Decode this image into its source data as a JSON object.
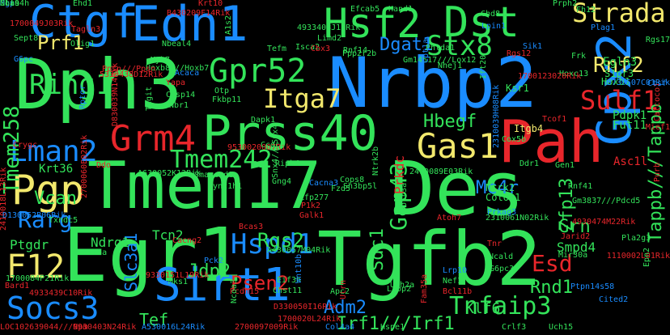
{
  "colors": {
    "background": "#000000",
    "green": "#33e35a",
    "blue": "#1a8cff",
    "red": "#e8262b",
    "yellow": "#f2e86d"
  },
  "words": [
    {
      "text": "Dph3",
      "color": "#33e35a"
    },
    {
      "text": "Nrbp2",
      "color": "#1a8cff"
    },
    {
      "text": "Tmem17",
      "color": "#33e35a"
    },
    {
      "text": "Des",
      "color": "#33e35a"
    },
    {
      "text": "Egr1",
      "color": "#33e35a"
    },
    {
      "text": "Tgfb2",
      "color": "#33e35a"
    },
    {
      "text": "Pah",
      "color": "#e8262b"
    },
    {
      "text": "Edn1",
      "color": "#1a8cff"
    },
    {
      "text": "Ctgf",
      "color": "#1a8cff"
    },
    {
      "text": "Prss40",
      "color": "#33e35a"
    },
    {
      "text": "Gpx2",
      "color": "#1a8cff"
    },
    {
      "text": "Hsf2",
      "color": "#33e35a"
    },
    {
      "text": "Dst",
      "color": "#33e35a"
    },
    {
      "text": "Gpr52",
      "color": "#33e35a"
    },
    {
      "text": "Sirt1",
      "color": "#1a8cff"
    },
    {
      "text": "Socs3",
      "color": "#1a8cff"
    },
    {
      "text": "Grm4",
      "color": "#e8262b"
    },
    {
      "text": "Pgp",
      "color": "#f2e86d"
    },
    {
      "text": "Gas1",
      "color": "#f2e86d"
    },
    {
      "text": "Strada",
      "color": "#f2e86d"
    },
    {
      "text": "Tmem242",
      "color": "#33e35a"
    },
    {
      "text": "Lman2",
      "color": "#1a8cff"
    },
    {
      "text": "Itga7",
      "color": "#f2e86d"
    },
    {
      "text": "Sulf1",
      "color": "#e8262b"
    },
    {
      "text": "Hspd1",
      "color": "#1a8cff"
    },
    {
      "text": "Tnfaip3",
      "color": "#33e35a"
    },
    {
      "text": "F12",
      "color": "#f2e86d"
    },
    {
      "text": "Ring1",
      "color": "#33e35a"
    },
    {
      "text": "Tmem258",
      "color": "#33e35a"
    },
    {
      "text": "Gap43",
      "color": "#33e35a"
    },
    {
      "text": "Stx8",
      "color": "#33e35a"
    },
    {
      "text": "Rnf2",
      "color": "#f2e86d"
    },
    {
      "text": "Esd",
      "color": "#e8262b"
    },
    {
      "text": "Rarg",
      "color": "#1a8cff"
    },
    {
      "text": "Irf1///Irf1",
      "color": "#33e35a"
    },
    {
      "text": "Slc3a1",
      "color": "#1a8cff"
    },
    {
      "text": "Tef",
      "color": "#33e35a"
    },
    {
      "text": "Rgs2",
      "color": "#33e35a"
    },
    {
      "text": "Psen2",
      "color": "#e8262b"
    },
    {
      "text": "Jdp2",
      "color": "#33e35a"
    },
    {
      "text": "Adm2",
      "color": "#1a8cff"
    },
    {
      "text": "Hbegf",
      "color": "#33e35a"
    },
    {
      "text": "Mc4r",
      "color": "#1a8cff"
    },
    {
      "text": "Prf1",
      "color": "#f2e86d"
    },
    {
      "text": "Vcan",
      "color": "#33e35a"
    },
    {
      "text": "Dgat1",
      "color": "#1a8cff"
    },
    {
      "text": "Rnd1",
      "color": "#33e35a"
    },
    {
      "text": "Grn",
      "color": "#33e35a"
    },
    {
      "text": "Zfp13",
      "color": "#33e35a"
    },
    {
      "text": "Sdc1",
      "color": "#33e35a"
    },
    {
      "text": "Tappb///Tappb",
      "color": "#33e35a"
    },
    {
      "text": "Klf6",
      "color": "#33e35a"
    },
    {
      "text": "Ptgdr",
      "color": "#33e35a"
    },
    {
      "text": "Tcn2",
      "color": "#33e35a"
    },
    {
      "text": "Ndrg1",
      "color": "#33e35a"
    },
    {
      "text": "Smpd4",
      "color": "#33e35a"
    },
    {
      "text": "Prkdc",
      "color": "#e8262b"
    },
    {
      "text": "Krt36",
      "color": "#33e35a"
    },
    {
      "text": "Asc1l",
      "color": "#e8262b"
    },
    {
      "text": "Itgb4",
      "color": "#f2e86d"
    },
    {
      "text": "Egln3",
      "color": "#33e35a"
    },
    {
      "text": "Pdpk1",
      "color": "#33e35a"
    },
    {
      "text": "Fut11",
      "color": "#33e35a"
    },
    {
      "text": "S1pr3",
      "color": "#33e35a"
    },
    {
      "text": "Hoxb1",
      "color": "#33e35a"
    },
    {
      "text": "Col6a1",
      "color": "#33e35a"
    },
    {
      "text": "Ntrk2",
      "color": "#33e35a"
    },
    {
      "text": "Ksr1",
      "color": "#33e35a"
    },
    {
      "text": "Nhej1",
      "color": "#33e35a"
    },
    {
      "text": "Gm14517///Lox12",
      "color": "#33e35a"
    },
    {
      "text": "Ppp2r2b",
      "color": "#33e35a"
    },
    {
      "text": "Isca2",
      "color": "#33e35a"
    },
    {
      "text": "4933408J17Rik",
      "color": "#33e35a"
    },
    {
      "text": "Efcab5",
      "color": "#33e35a"
    },
    {
      "text": "Hand1",
      "color": "#33e35a"
    },
    {
      "text": "Lta4h",
      "color": "#33e35a"
    },
    {
      "text": "Ehd1",
      "color": "#33e35a"
    },
    {
      "text": "B430209F14Rik",
      "color": "#e8262b"
    },
    {
      "text": "Krt10",
      "color": "#e8262b"
    },
    {
      "text": "1700049J03Rik",
      "color": "#e8262b"
    },
    {
      "text": "Tagln3",
      "color": "#e8262b"
    },
    {
      "text": "Sept8",
      "color": "#33e35a"
    },
    {
      "text": "Olig1",
      "color": "#33e35a"
    },
    {
      "text": "Nbeal4",
      "color": "#33e35a"
    },
    {
      "text": "Prph2",
      "color": "#33e35a"
    },
    {
      "text": "Fh12",
      "color": "#33e35a"
    },
    {
      "text": "Chd8",
      "color": "#33e35a"
    },
    {
      "text": "Lpin1",
      "color": "#1a8cff"
    },
    {
      "text": "Rgs12",
      "color": "#e8262b"
    },
    {
      "text": "Frk",
      "color": "#33e35a"
    },
    {
      "text": "Rgs17",
      "color": "#33e35a"
    },
    {
      "text": "G6pc",
      "color": "#1a8cff"
    },
    {
      "text": "5330438D12Rik",
      "color": "#e8262b"
    },
    {
      "text": "Myh7",
      "color": "#33e35a"
    },
    {
      "text": "Hoxb8///Hoxb7",
      "color": "#33e35a"
    },
    {
      "text": "Acaca",
      "color": "#1a8cff"
    },
    {
      "text": "Yapa",
      "color": "#e8262b"
    },
    {
      "text": "Nbr1",
      "color": "#33e35a"
    },
    {
      "text": "Casp14",
      "color": "#33e35a"
    },
    {
      "text": "Fkbp11",
      "color": "#33e35a"
    },
    {
      "text": "Tigit",
      "color": "#33e35a"
    },
    {
      "text": "Dapk1",
      "color": "#33e35a"
    },
    {
      "text": "D830039N14Rik",
      "color": "#e8262b"
    },
    {
      "text": "Crygc",
      "color": "#e8262b"
    },
    {
      "text": "9530020007Rik",
      "color": "#e8262b"
    },
    {
      "text": "Ccdc6",
      "color": "#33e35a"
    },
    {
      "text": "Ddo",
      "color": "#e8262b"
    },
    {
      "text": "A630052K13Rik",
      "color": "#33e35a"
    },
    {
      "text": "Ripk4",
      "color": "#33e35a"
    },
    {
      "text": "2410089E03Rik",
      "color": "#33e35a"
    },
    {
      "text": "2410018L13Rik",
      "color": "#e8262b"
    },
    {
      "text": "D130052B06Rik",
      "color": "#1a8cff"
    },
    {
      "text": "Txndc5",
      "color": "#33e35a"
    },
    {
      "text": "2700060E02Rik",
      "color": "#e8262b"
    },
    {
      "text": "Zfp277",
      "color": "#33e35a"
    },
    {
      "text": "P1k2",
      "color": "#e8262b"
    },
    {
      "text": "Galk1",
      "color": "#e8262b"
    },
    {
      "text": "Prkag3",
      "color": "#1a8cff"
    },
    {
      "text": "2310061N02Rik",
      "color": "#33e35a"
    },
    {
      "text": "4930474M22Rik",
      "color": "#e8262b"
    },
    {
      "text": "Gm3837///Pdcd5",
      "color": "#33e35a"
    },
    {
      "text": "Rnf41",
      "color": "#33e35a"
    },
    {
      "text": "Ddr1",
      "color": "#33e35a"
    },
    {
      "text": "Cacng2",
      "color": "#e8262b"
    },
    {
      "text": "Bcas3",
      "color": "#e8262b"
    },
    {
      "text": "A430057M04Rik",
      "color": "#33e35a"
    },
    {
      "text": "Pck2",
      "color": "#1a8cff"
    },
    {
      "text": "Eif5a",
      "color": "#33e35a"
    },
    {
      "text": "Bard1",
      "color": "#e8262b"
    },
    {
      "text": "4933439C10Rik",
      "color": "#e8262b"
    },
    {
      "text": "1700084P21Rik",
      "color": "#33e35a"
    },
    {
      "text": "Mks1",
      "color": "#33e35a"
    },
    {
      "text": "Pcdh15",
      "color": "#e8262b"
    },
    {
      "text": "Chst11",
      "color": "#33e35a"
    },
    {
      "text": "Eif3h",
      "color": "#33e35a"
    },
    {
      "text": "Wnt10b",
      "color": "#1a8cff"
    },
    {
      "text": "Lrp10",
      "color": "#1a8cff"
    },
    {
      "text": "Nef1",
      "color": "#33e35a"
    },
    {
      "text": "Bcl11b",
      "color": "#e8262b"
    },
    {
      "text": "G6pc3",
      "color": "#33e35a"
    },
    {
      "text": "Ncald",
      "color": "#33e35a"
    },
    {
      "text": "Tnr",
      "color": "#e8262b"
    },
    {
      "text": "Ltbp2",
      "color": "#33e35a"
    },
    {
      "text": "Mir30a",
      "color": "#33e35a"
    },
    {
      "text": "Ptpn14s58",
      "color": "#1a8cff"
    },
    {
      "text": "Cited2",
      "color": "#1a8cff"
    },
    {
      "text": "1110002L01Rik",
      "color": "#e8262b"
    },
    {
      "text": "Pla2g3",
      "color": "#33e35a"
    },
    {
      "text": "Uch15",
      "color": "#33e35a"
    },
    {
      "text": "Epn2",
      "color": "#33e35a"
    },
    {
      "text": "LOC102639044///Npm",
      "color": "#e8262b"
    },
    {
      "text": "9930403N24Rik",
      "color": "#e8262b"
    },
    {
      "text": "A530016L24Rik",
      "color": "#1a8cff"
    },
    {
      "text": "2700097009Rik",
      "color": "#e8262b"
    },
    {
      "text": "1700020L24Rik",
      "color": "#e8262b"
    },
    {
      "text": "Col4a4",
      "color": "#1a8cff"
    },
    {
      "text": "Hspe1",
      "color": "#33e35a"
    },
    {
      "text": "Crlf3",
      "color": "#33e35a"
    },
    {
      "text": "D330050I16Rik",
      "color": "#e8262b"
    },
    {
      "text": "Utrn",
      "color": "#e8262b"
    },
    {
      "text": "Fam35a",
      "color": "#e8262b"
    },
    {
      "text": "Ush2a",
      "color": "#33e35a"
    },
    {
      "text": "Apc2",
      "color": "#33e35a"
    },
    {
      "text": "Atoh7",
      "color": "#e8262b"
    },
    {
      "text": "Jarid2",
      "color": "#e8262b"
    },
    {
      "text": "Purb",
      "color": "#e8262b"
    },
    {
      "text": "Cops8",
      "color": "#33e35a"
    },
    {
      "text": "Cacna3",
      "color": "#1a8cff"
    },
    {
      "text": "Dync1h1",
      "color": "#33e35a"
    },
    {
      "text": "Gng4",
      "color": "#33e35a"
    },
    {
      "text": "Smarcad1",
      "color": "#33e35a"
    },
    {
      "text": "Snx4///Snx4",
      "color": "#33e35a"
    },
    {
      "text": "Fzd5",
      "color": "#33e35a"
    },
    {
      "text": "Cox5b",
      "color": "#33e35a"
    },
    {
      "text": "Calcoco1",
      "color": "#e8262b"
    },
    {
      "text": "Mief1",
      "color": "#e8262b"
    },
    {
      "text": "Tcof1",
      "color": "#e8262b"
    },
    {
      "text": "Ctsf",
      "color": "#1a8cff"
    },
    {
      "text": "Hoxc13",
      "color": "#33e35a"
    },
    {
      "text": "1700123020Rik",
      "color": "#e8262b"
    },
    {
      "text": "Ift20",
      "color": "#33e35a"
    },
    {
      "text": "Cpt1a",
      "color": "#1a8cff"
    },
    {
      "text": "Phlda1",
      "color": "#33e35a"
    },
    {
      "text": "Limd2",
      "color": "#33e35a"
    },
    {
      "text": "Rnf14",
      "color": "#33e35a"
    },
    {
      "text": "Cbx3",
      "color": "#e8262b"
    },
    {
      "text": "Tefm",
      "color": "#33e35a"
    },
    {
      "text": "A1s2",
      "color": "#33e35a"
    },
    {
      "text": "Ppsn///Ppsn",
      "color": "#e8262b"
    },
    {
      "text": "Rptor",
      "color": "#1a8cff"
    },
    {
      "text": "Sik1",
      "color": "#1a8cff"
    },
    {
      "text": "Plag1",
      "color": "#1a8cff"
    },
    {
      "text": "5730507C01Rik",
      "color": "#1a8cff"
    },
    {
      "text": "2310039H08Rik",
      "color": "#1a8cff"
    },
    {
      "text": "Polr3a",
      "color": "#33e35a"
    },
    {
      "text": "Ntrk2b",
      "color": "#33e35a"
    },
    {
      "text": "Sh3bp5l",
      "color": "#33e35a"
    },
    {
      "text": "9330151L19Rik",
      "color": "#e8262b"
    },
    {
      "text": "Ncoa3",
      "color": "#33e35a"
    },
    {
      "text": "Gen1",
      "color": "#33e35a"
    },
    {
      "text": "Otp",
      "color": "#33e35a"
    },
    {
      "text": "Gli9",
      "color": "#33e35a"
    },
    {
      "text": "Mgp",
      "color": "#1a8cff"
    },
    {
      "text": "Nbas",
      "color": "#33e35a"
    }
  ]
}
